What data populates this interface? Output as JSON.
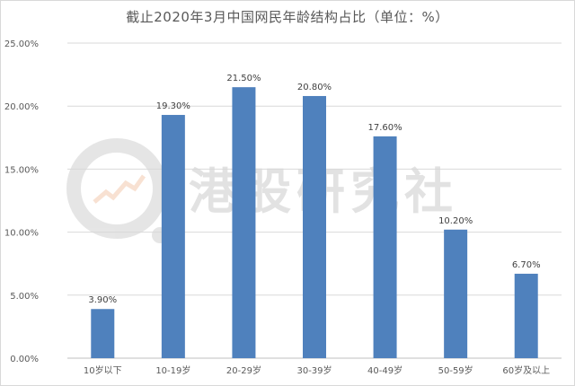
{
  "chart_data": {
    "type": "bar",
    "title": "截止2020年3月中国网民年龄结构占比（单位：%）",
    "categories": [
      "10岁以下",
      "10-19岁",
      "20-29岁",
      "30-39岁",
      "40-49岁",
      "50-59岁",
      "60岁及以上"
    ],
    "values": [
      3.9,
      19.3,
      21.5,
      20.8,
      17.6,
      10.2,
      6.7
    ],
    "data_labels": [
      "3.90%",
      "19.30%",
      "21.50%",
      "20.80%",
      "17.60%",
      "10.20%",
      "6.70%"
    ],
    "y_ticks": [
      "0.00%",
      "5.00%",
      "10.00%",
      "15.00%",
      "20.00%",
      "25.00%"
    ],
    "ylim": [
      0,
      25
    ],
    "xlabel": "",
    "ylabel": "",
    "grid": true,
    "legend": "none",
    "bar_color": "#4f81bd"
  },
  "watermark": {
    "text": "港股研究社"
  }
}
